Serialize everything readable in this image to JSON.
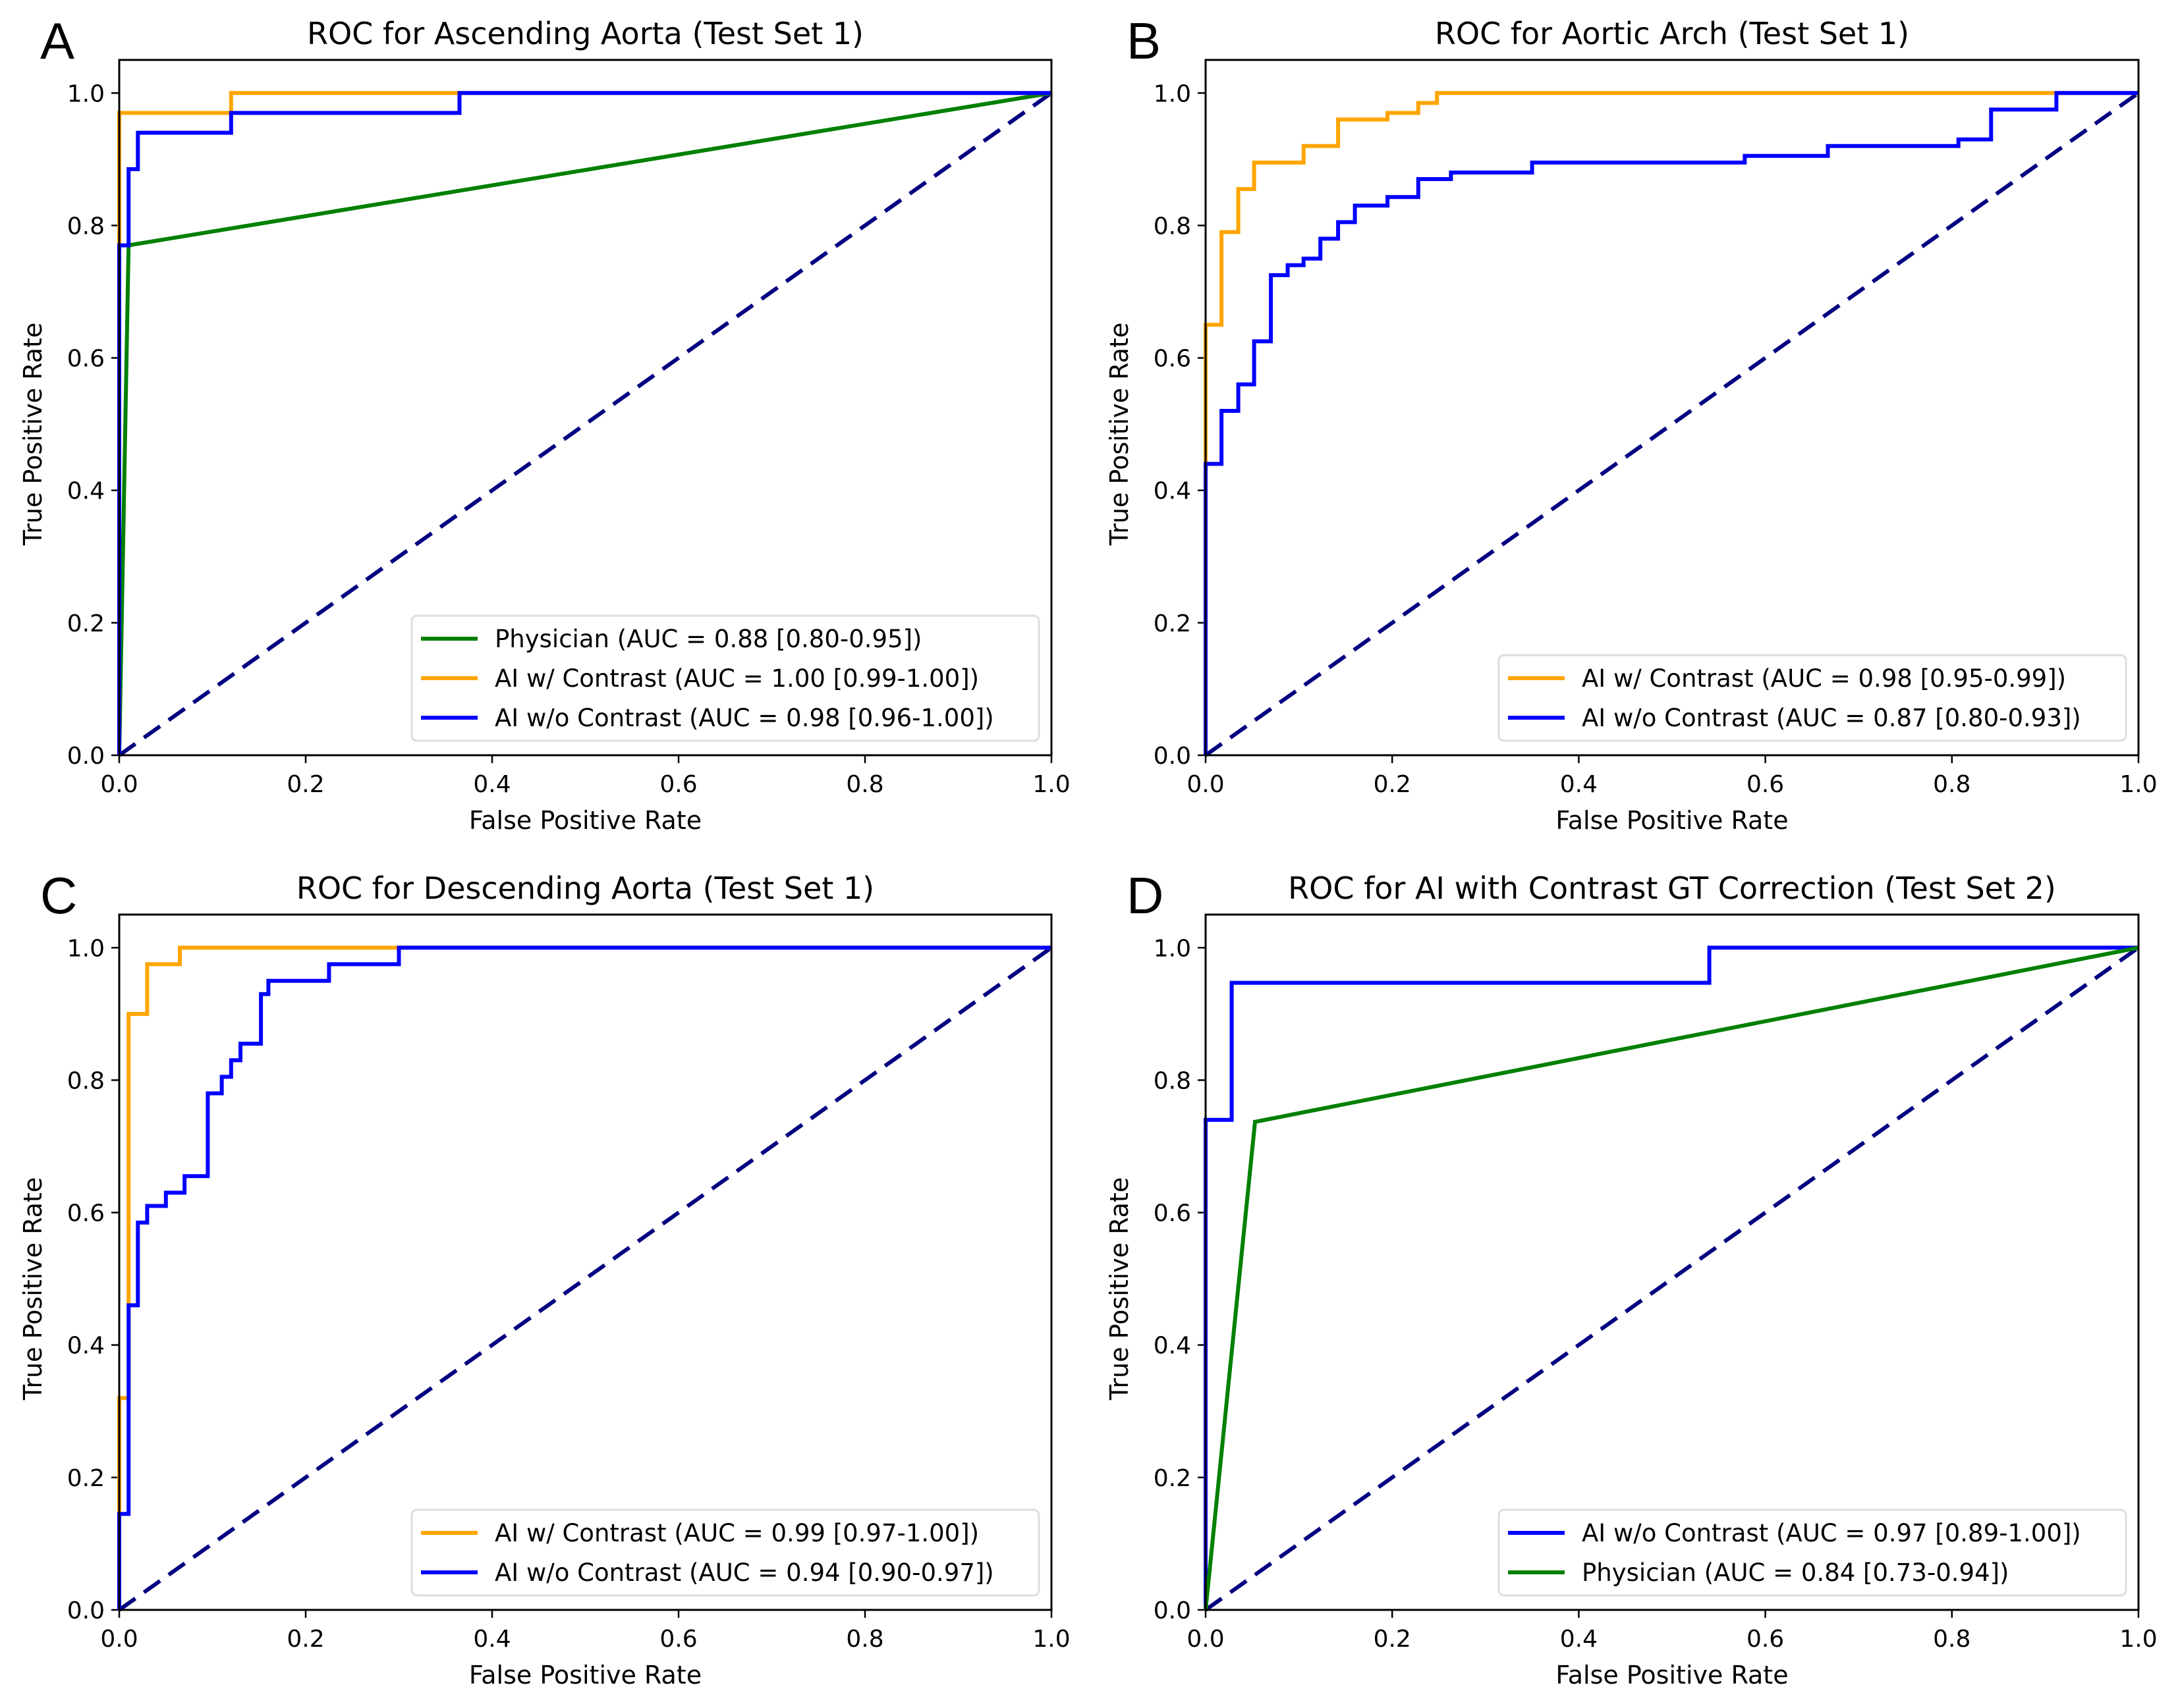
{
  "chart_data": [
    {
      "panel_label": "A",
      "type": "line",
      "title": "ROC for Ascending Aorta (Test Set 1)",
      "xlabel": "False Positive Rate",
      "ylabel": "True Positive Rate",
      "xlim": [
        0,
        1
      ],
      "ylim": [
        0,
        1.05
      ],
      "xticks": [
        "0.0",
        "0.2",
        "0.4",
        "0.6",
        "0.8",
        "1.0"
      ],
      "yticks": [
        "0.0",
        "0.2",
        "0.4",
        "0.6",
        "0.8",
        "1.0"
      ],
      "legend_position": "lower-right",
      "grid": false,
      "series": [
        {
          "name": "Physician (AUC = 0.88 [0.80-0.95])",
          "color": "#008000",
          "x": [
            0,
            0.01,
            1
          ],
          "y": [
            0,
            0.77,
            1
          ]
        },
        {
          "name": "AI w/ Contrast (AUC = 1.00 [0.99-1.00])",
          "color": "#FFA500",
          "x": [
            0,
            0,
            0.12,
            0.12,
            1
          ],
          "y": [
            0,
            0.97,
            0.97,
            1,
            1
          ]
        },
        {
          "name": "AI w/o Contrast (AUC = 0.98 [0.96-1.00])",
          "color": "#0000FF",
          "x": [
            0,
            0,
            0.01,
            0.01,
            0.02,
            0.02,
            0.12,
            0.12,
            0.365,
            0.365,
            1
          ],
          "y": [
            0,
            0.77,
            0.77,
            0.885,
            0.885,
            0.94,
            0.94,
            0.97,
            0.97,
            1,
            1
          ]
        }
      ],
      "diagonal": {
        "color": "#000080",
        "style": "dashed"
      }
    },
    {
      "panel_label": "B",
      "type": "line",
      "title": "ROC for Aortic Arch (Test Set 1)",
      "xlabel": "False Positive Rate",
      "ylabel": "True Positive Rate",
      "xlim": [
        0,
        1
      ],
      "ylim": [
        0,
        1.05
      ],
      "xticks": [
        "0.0",
        "0.2",
        "0.4",
        "0.6",
        "0.8",
        "1.0"
      ],
      "yticks": [
        "0.0",
        "0.2",
        "0.4",
        "0.6",
        "0.8",
        "1.0"
      ],
      "legend_position": "lower-right",
      "grid": false,
      "series": [
        {
          "name": "AI w/ Contrast (AUC = 0.98 [0.95-0.99])",
          "color": "#FFA500",
          "x": [
            0,
            0,
            0.017,
            0.017,
            0.035,
            0.035,
            0.052,
            0.052,
            0.105,
            0.105,
            0.142,
            0.142,
            0.195,
            0.195,
            0.228,
            0.228,
            0.248,
            0.248,
            1
          ],
          "y": [
            0,
            0.65,
            0.65,
            0.79,
            0.79,
            0.855,
            0.855,
            0.895,
            0.895,
            0.92,
            0.92,
            0.96,
            0.96,
            0.97,
            0.97,
            0.985,
            0.985,
            1,
            1
          ]
        },
        {
          "name": "AI w/o Contrast (AUC = 0.87 [0.80-0.93])",
          "color": "#0000FF",
          "x": [
            0,
            0,
            0.017,
            0.017,
            0.035,
            0.035,
            0.052,
            0.052,
            0.07,
            0.07,
            0.088,
            0.088,
            0.105,
            0.105,
            0.123,
            0.123,
            0.142,
            0.142,
            0.16,
            0.16,
            0.195,
            0.195,
            0.228,
            0.228,
            0.263,
            0.263,
            0.35,
            0.35,
            0.578,
            0.578,
            0.667,
            0.667,
            0.807,
            0.807,
            0.842,
            0.842,
            0.912,
            0.912,
            1
          ],
          "y": [
            0,
            0.44,
            0.44,
            0.52,
            0.52,
            0.56,
            0.56,
            0.625,
            0.625,
            0.725,
            0.725,
            0.74,
            0.74,
            0.75,
            0.75,
            0.78,
            0.78,
            0.805,
            0.805,
            0.83,
            0.83,
            0.843,
            0.843,
            0.87,
            0.87,
            0.88,
            0.88,
            0.895,
            0.895,
            0.905,
            0.905,
            0.92,
            0.92,
            0.93,
            0.93,
            0.975,
            0.975,
            1,
            1
          ]
        }
      ],
      "diagonal": {
        "color": "#000080",
        "style": "dashed"
      }
    },
    {
      "panel_label": "C",
      "type": "line",
      "title": "ROC for Descending Aorta (Test Set 1)",
      "xlabel": "False Positive Rate",
      "ylabel": "True Positive Rate",
      "xlim": [
        0,
        1
      ],
      "ylim": [
        0,
        1.05
      ],
      "xticks": [
        "0.0",
        "0.2",
        "0.4",
        "0.6",
        "0.8",
        "1.0"
      ],
      "yticks": [
        "0.0",
        "0.2",
        "0.4",
        "0.6",
        "0.8",
        "1.0"
      ],
      "legend_position": "lower-right",
      "grid": false,
      "series": [
        {
          "name": "AI w/ Contrast (AUC = 0.99 [0.97-1.00])",
          "color": "#FFA500",
          "x": [
            0,
            0,
            0.01,
            0.01,
            0.03,
            0.03,
            0.065,
            0.065,
            1
          ],
          "y": [
            0,
            0.32,
            0.32,
            0.9,
            0.9,
            0.975,
            0.975,
            1,
            1
          ]
        },
        {
          "name": "AI w/o Contrast (AUC = 0.94 [0.90-0.97])",
          "color": "#0000FF",
          "x": [
            0,
            0,
            0.01,
            0.01,
            0.02,
            0.02,
            0.03,
            0.03,
            0.05,
            0.05,
            0.07,
            0.07,
            0.095,
            0.095,
            0.11,
            0.11,
            0.12,
            0.12,
            0.13,
            0.13,
            0.152,
            0.152,
            0.16,
            0.16,
            0.225,
            0.225,
            0.3,
            0.3,
            1
          ],
          "y": [
            0,
            0.145,
            0.145,
            0.46,
            0.46,
            0.585,
            0.585,
            0.61,
            0.61,
            0.63,
            0.63,
            0.655,
            0.655,
            0.78,
            0.78,
            0.805,
            0.805,
            0.83,
            0.83,
            0.855,
            0.855,
            0.93,
            0.93,
            0.95,
            0.95,
            0.975,
            0.975,
            1,
            1
          ]
        }
      ],
      "diagonal": {
        "color": "#000080",
        "style": "dashed"
      }
    },
    {
      "panel_label": "D",
      "type": "line",
      "title": "ROC for AI with Contrast GT Correction (Test Set 2)",
      "xlabel": "False Positive Rate",
      "ylabel": "True Positive Rate",
      "xlim": [
        0,
        1
      ],
      "ylim": [
        0,
        1.05
      ],
      "xticks": [
        "0.0",
        "0.2",
        "0.4",
        "0.6",
        "0.8",
        "1.0"
      ],
      "yticks": [
        "0.0",
        "0.2",
        "0.4",
        "0.6",
        "0.8",
        "1.0"
      ],
      "legend_position": "lower-right",
      "grid": false,
      "series": [
        {
          "name": "AI w/o Contrast (AUC = 0.97 [0.89-1.00])",
          "color": "#0000FF",
          "x": [
            0,
            0,
            0.028,
            0.028,
            0.54,
            0.54,
            1
          ],
          "y": [
            0,
            0.74,
            0.74,
            0.947,
            0.947,
            1,
            1
          ]
        },
        {
          "name": "Physician (AUC = 0.84 [0.73-0.94])",
          "color": "#008000",
          "x": [
            0,
            0.053,
            1
          ],
          "y": [
            0,
            0.737,
            1
          ]
        }
      ],
      "diagonal": {
        "color": "#000080",
        "style": "dashed"
      }
    }
  ]
}
